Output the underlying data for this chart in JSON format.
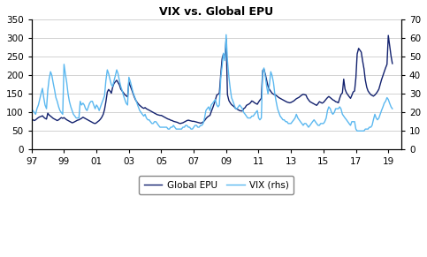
{
  "title": "VIX vs. Global EPU",
  "left_ylim": [
    0,
    350
  ],
  "right_ylim": [
    0,
    70
  ],
  "left_yticks": [
    0,
    50,
    100,
    150,
    200,
    250,
    300,
    350
  ],
  "right_yticks": [
    0,
    10,
    20,
    30,
    40,
    50,
    60,
    70
  ],
  "xtick_labels": [
    "97",
    "99",
    "01",
    "03",
    "05",
    "07",
    "09",
    "11",
    "13",
    "15",
    "17",
    "19"
  ],
  "xtick_positions": [
    1997,
    1999,
    2001,
    2003,
    2005,
    2007,
    2009,
    2011,
    2013,
    2015,
    2017,
    2019
  ],
  "xlim": [
    1997,
    2019.8
  ],
  "epu_color": "#12216e",
  "vix_color": "#5bb8f0",
  "legend_epu": "Global EPU",
  "legend_vix": "VIX (rhs)",
  "epu_lw": 1.0,
  "vix_lw": 1.0,
  "title_fontsize": 9,
  "tick_fontsize": 7.5,
  "legend_fontsize": 7.5,
  "years": [
    1997.08,
    1997.17,
    1997.25,
    1997.33,
    1997.42,
    1997.5,
    1997.58,
    1997.67,
    1997.75,
    1997.83,
    1997.92,
    1998.0,
    1998.08,
    1998.17,
    1998.25,
    1998.33,
    1998.42,
    1998.5,
    1998.58,
    1998.67,
    1998.75,
    1998.83,
    1998.92,
    1999.0,
    1999.08,
    1999.17,
    1999.25,
    1999.33,
    1999.42,
    1999.5,
    1999.58,
    1999.67,
    1999.75,
    1999.83,
    1999.92,
    2000.0,
    2000.08,
    2000.17,
    2000.25,
    2000.33,
    2000.42,
    2000.5,
    2000.58,
    2000.67,
    2000.75,
    2000.83,
    2000.92,
    2001.0,
    2001.08,
    2001.17,
    2001.25,
    2001.33,
    2001.42,
    2001.5,
    2001.58,
    2001.67,
    2001.75,
    2001.83,
    2001.92,
    2002.0,
    2002.08,
    2002.17,
    2002.25,
    2002.33,
    2002.42,
    2002.5,
    2002.58,
    2002.67,
    2002.75,
    2002.83,
    2002.92,
    2003.0,
    2003.08,
    2003.17,
    2003.25,
    2003.33,
    2003.42,
    2003.5,
    2003.58,
    2003.67,
    2003.75,
    2003.83,
    2003.92,
    2004.0,
    2004.08,
    2004.17,
    2004.25,
    2004.33,
    2004.42,
    2004.5,
    2004.58,
    2004.67,
    2004.75,
    2004.83,
    2004.92,
    2005.0,
    2005.08,
    2005.17,
    2005.25,
    2005.33,
    2005.42,
    2005.5,
    2005.58,
    2005.67,
    2005.75,
    2005.83,
    2005.92,
    2006.0,
    2006.08,
    2006.17,
    2006.25,
    2006.33,
    2006.42,
    2006.5,
    2006.58,
    2006.67,
    2006.75,
    2006.83,
    2006.92,
    2007.0,
    2007.08,
    2007.17,
    2007.25,
    2007.33,
    2007.42,
    2007.5,
    2007.58,
    2007.67,
    2007.75,
    2007.83,
    2007.92,
    2008.0,
    2008.08,
    2008.17,
    2008.25,
    2008.33,
    2008.42,
    2008.5,
    2008.58,
    2008.67,
    2008.75,
    2008.83,
    2008.92,
    2009.0,
    2009.08,
    2009.17,
    2009.25,
    2009.33,
    2009.42,
    2009.5,
    2009.58,
    2009.67,
    2009.75,
    2009.83,
    2009.92,
    2010.0,
    2010.08,
    2010.17,
    2010.25,
    2010.33,
    2010.42,
    2010.5,
    2010.58,
    2010.67,
    2010.75,
    2010.83,
    2010.92,
    2011.0,
    2011.08,
    2011.17,
    2011.25,
    2011.33,
    2011.42,
    2011.5,
    2011.58,
    2011.67,
    2011.75,
    2011.83,
    2011.92,
    2012.0,
    2012.08,
    2012.17,
    2012.25,
    2012.33,
    2012.42,
    2012.5,
    2012.58,
    2012.67,
    2012.75,
    2012.83,
    2012.92,
    2013.0,
    2013.08,
    2013.17,
    2013.25,
    2013.33,
    2013.42,
    2013.5,
    2013.58,
    2013.67,
    2013.75,
    2013.83,
    2013.92,
    2014.0,
    2014.08,
    2014.17,
    2014.25,
    2014.33,
    2014.42,
    2014.5,
    2014.58,
    2014.67,
    2014.75,
    2014.83,
    2014.92,
    2015.0,
    2015.08,
    2015.17,
    2015.25,
    2015.33,
    2015.42,
    2015.5,
    2015.58,
    2015.67,
    2015.75,
    2015.83,
    2015.92,
    2016.0,
    2016.08,
    2016.17,
    2016.25,
    2016.33,
    2016.42,
    2016.5,
    2016.58,
    2016.67,
    2016.75,
    2016.83,
    2016.92,
    2017.0,
    2017.08,
    2017.17,
    2017.25,
    2017.33,
    2017.42,
    2017.5,
    2017.58,
    2017.67,
    2017.75,
    2017.83,
    2017.92,
    2018.0,
    2018.08,
    2018.17,
    2018.25,
    2018.33,
    2018.42,
    2018.5,
    2018.58,
    2018.67,
    2018.75,
    2018.83,
    2018.92,
    2019.0,
    2019.08,
    2019.17,
    2019.25
  ],
  "epu": [
    80,
    78,
    80,
    83,
    86,
    88,
    89,
    91,
    87,
    84,
    82,
    98,
    93,
    90,
    87,
    84,
    82,
    80,
    78,
    80,
    83,
    86,
    84,
    86,
    83,
    80,
    78,
    76,
    74,
    72,
    73,
    75,
    77,
    79,
    80,
    82,
    84,
    87,
    85,
    83,
    81,
    79,
    77,
    75,
    73,
    71,
    70,
    72,
    75,
    78,
    82,
    87,
    95,
    108,
    128,
    155,
    162,
    158,
    152,
    168,
    178,
    183,
    187,
    181,
    174,
    163,
    158,
    153,
    148,
    145,
    142,
    183,
    172,
    162,
    152,
    142,
    133,
    128,
    123,
    119,
    116,
    113,
    111,
    113,
    110,
    108,
    106,
    104,
    102,
    100,
    98,
    96,
    94,
    93,
    92,
    92,
    90,
    88,
    86,
    84,
    82,
    81,
    79,
    78,
    76,
    75,
    74,
    73,
    71,
    70,
    71,
    72,
    74,
    76,
    78,
    79,
    78,
    77,
    76,
    76,
    75,
    74,
    73,
    72,
    71,
    72,
    74,
    78,
    83,
    87,
    90,
    92,
    102,
    112,
    122,
    133,
    147,
    149,
    152,
    205,
    245,
    258,
    248,
    298,
    148,
    132,
    126,
    121,
    118,
    115,
    111,
    109,
    107,
    105,
    104,
    104,
    110,
    113,
    119,
    121,
    123,
    126,
    131,
    129,
    126,
    124,
    122,
    128,
    133,
    138,
    213,
    217,
    202,
    187,
    171,
    162,
    157,
    152,
    149,
    148,
    146,
    143,
    140,
    138,
    136,
    134,
    132,
    130,
    128,
    127,
    126,
    127,
    129,
    131,
    134,
    137,
    139,
    141,
    144,
    147,
    149,
    148,
    147,
    139,
    134,
    129,
    127,
    125,
    123,
    121,
    119,
    124,
    129,
    127,
    125,
    127,
    131,
    136,
    140,
    143,
    140,
    137,
    134,
    132,
    129,
    128,
    126,
    138,
    148,
    153,
    190,
    163,
    153,
    148,
    143,
    138,
    146,
    155,
    158,
    193,
    258,
    273,
    268,
    263,
    238,
    218,
    188,
    168,
    158,
    153,
    148,
    146,
    144,
    147,
    151,
    156,
    163,
    176,
    188,
    200,
    210,
    220,
    230,
    308,
    282,
    252,
    232
  ],
  "vix": [
    21,
    20,
    19,
    22,
    24,
    27,
    30,
    33,
    28,
    24,
    22,
    32,
    38,
    42,
    40,
    36,
    32,
    28,
    26,
    23,
    21,
    20,
    19,
    46,
    41,
    36,
    30,
    26,
    23,
    21,
    19,
    18,
    17,
    17,
    17,
    26,
    24,
    25,
    24,
    22,
    21,
    23,
    25,
    26,
    26,
    24,
    22,
    24,
    23,
    21,
    23,
    25,
    27,
    29,
    37,
    43,
    41,
    38,
    35,
    34,
    37,
    40,
    43,
    41,
    37,
    34,
    32,
    29,
    27,
    25,
    24,
    39,
    37,
    34,
    31,
    29,
    27,
    25,
    23,
    21,
    20,
    19,
    18,
    19,
    17,
    16,
    16,
    15,
    14,
    14,
    15,
    15,
    14,
    13,
    12,
    12,
    12,
    12,
    12,
    12,
    11,
    11,
    12,
    12,
    13,
    12,
    11,
    11,
    11,
    11,
    11,
    12,
    12,
    13,
    13,
    12,
    12,
    11,
    11,
    12,
    13,
    13,
    12,
    12,
    13,
    13,
    14,
    17,
    21,
    22,
    23,
    21,
    24,
    25,
    26,
    27,
    24,
    23,
    24,
    39,
    45,
    52,
    48,
    62,
    48,
    39,
    33,
    28,
    26,
    24,
    22,
    22,
    23,
    24,
    23,
    22,
    20,
    19,
    18,
    17,
    17,
    17,
    18,
    18,
    19,
    20,
    21,
    17,
    16,
    17,
    42,
    44,
    39,
    34,
    30,
    35,
    42,
    40,
    36,
    30,
    26,
    22,
    20,
    18,
    17,
    16,
    16,
    15,
    15,
    14,
    14,
    14,
    15,
    16,
    17,
    19,
    17,
    16,
    15,
    14,
    13,
    14,
    14,
    13,
    12,
    13,
    14,
    15,
    16,
    15,
    14,
    13,
    13,
    14,
    14,
    14,
    15,
    17,
    21,
    23,
    22,
    20,
    19,
    20,
    22,
    22,
    22,
    23,
    22,
    19,
    18,
    17,
    16,
    15,
    14,
    13,
    15,
    15,
    15,
    11,
    10,
    10,
    10,
    10,
    10,
    10,
    11,
    11,
    11,
    12,
    12,
    13,
    16,
    19,
    17,
    16,
    17,
    19,
    21,
    23,
    25,
    26,
    28,
    27,
    25,
    23,
    22
  ]
}
